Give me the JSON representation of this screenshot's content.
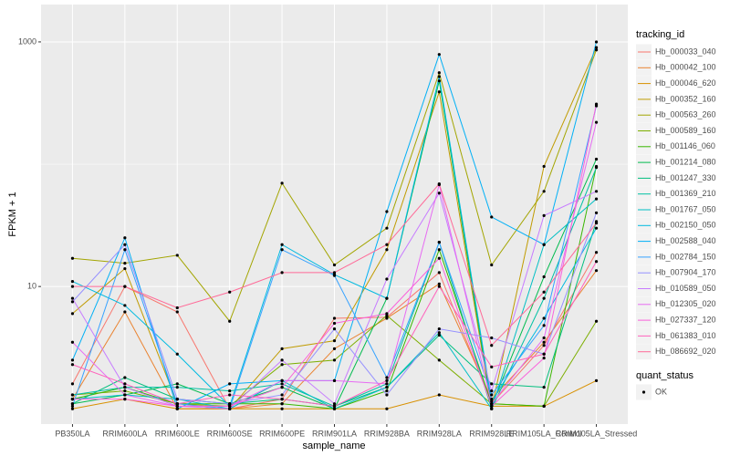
{
  "chart_data": {
    "type": "line",
    "x_label": "sample_name",
    "y_label": "FPKM + 1",
    "categories": [
      "PB350LA",
      "RRIM600LA",
      "RRIM600LE",
      "RRIM600SE",
      "RRIM600PE",
      "RRIM901LA",
      "RRIM928BA",
      "RRIM928LA",
      "RRIM928LE",
      "RRIM105LA_Control",
      "RRIM105LA_Stressed"
    ],
    "log_y": true,
    "ylim": [
      0.75,
      2020
    ],
    "yticks": [
      10,
      1000
    ],
    "grid": true,
    "legend_title": "tracking_id",
    "legend_position": "right",
    "series": [
      {
        "name": "Hb_000033_040",
        "color": "#F8766D",
        "values": [
          1.6,
          10,
          6.2,
          1.0,
          1.2,
          5.5,
          5.6,
          13,
          1.1,
          3.3,
          19
        ]
      },
      {
        "name": "Hb_000042_100",
        "color": "#EA8331",
        "values": [
          1.2,
          6.2,
          1.0,
          1.0,
          1.1,
          3.1,
          5.5,
          10.5,
          1.2,
          3.5,
          13.5
        ]
      },
      {
        "name": "Hb_000046_620",
        "color": "#D89000",
        "values": [
          1.0,
          1.2,
          1.0,
          1.0,
          1.0,
          1.0,
          1.0,
          1.3,
          1.05,
          1.05,
          1.7
        ]
      },
      {
        "name": "Hb_000352_160",
        "color": "#C09B00",
        "values": [
          6,
          14,
          1.1,
          1.0,
          3.1,
          3.6,
          20,
          390,
          1.0,
          96,
          900
        ]
      },
      {
        "name": "Hb_000563_260",
        "color": "#A3A500",
        "values": [
          17,
          15.5,
          18,
          5.2,
          70,
          15,
          30,
          560,
          15,
          60,
          860
        ]
      },
      {
        "name": "Hb_000589_160",
        "color": "#7CAE00",
        "values": [
          1.3,
          1.4,
          1.1,
          1.05,
          2.3,
          2.5,
          5.8,
          2.5,
          1.1,
          1.05,
          5.2
        ]
      },
      {
        "name": "Hb_001146_060",
        "color": "#39B600",
        "values": [
          1.2,
          1.5,
          1.1,
          1.1,
          1.1,
          1.0,
          1.4,
          20,
          1.1,
          1.05,
          96
        ]
      },
      {
        "name": "Hb_001214_080",
        "color": "#00BB4E",
        "values": [
          1.1,
          1.3,
          1.6,
          1.1,
          1.5,
          1.0,
          8,
          480,
          1.05,
          12,
          110
        ]
      },
      {
        "name": "Hb_001247_330",
        "color": "#00BF7D",
        "values": [
          1.1,
          1.8,
          1.2,
          1.1,
          1.2,
          1.05,
          1.5,
          4,
          1.6,
          1.5,
          34
        ]
      },
      {
        "name": "Hb_001369_210",
        "color": "#00C1A3",
        "values": [
          1.3,
          1.5,
          1.5,
          1.4,
          1.6,
          1.05,
          1.6,
          23,
          1.0,
          8,
          94
        ]
      },
      {
        "name": "Hb_001767_050",
        "color": "#00BFC4",
        "values": [
          1.2,
          1.3,
          1.2,
          1.0,
          1.7,
          1.0,
          1.5,
          4.2,
          1.0,
          22,
          52
        ]
      },
      {
        "name": "Hb_002150_050",
        "color": "#00BAE0",
        "values": [
          11,
          7,
          2.8,
          1.05,
          22,
          12.5,
          8,
          520,
          1.15,
          5.5,
          30
        ]
      },
      {
        "name": "Hb_002588_040",
        "color": "#00B0F6",
        "values": [
          2.5,
          25,
          1.0,
          1.6,
          1.7,
          1.7,
          41,
          790,
          37,
          22,
          1000
        ]
      },
      {
        "name": "Hb_002784_150",
        "color": "#35A2FF",
        "values": [
          1.05,
          20,
          1.1,
          1.0,
          20,
          12.3,
          1.8,
          23,
          1.3,
          4.8,
          300
        ]
      },
      {
        "name": "Hb_007904_170",
        "color": "#9590FF",
        "values": [
          7.5,
          22,
          1.2,
          1.1,
          1.3,
          4.5,
          1.3,
          4.5,
          3.8,
          2.8,
          40
        ]
      },
      {
        "name": "Hb_010589_050",
        "color": "#C77CFF",
        "values": [
          8,
          1.5,
          1.05,
          1.0,
          2.5,
          1.1,
          11.5,
          58,
          1.4,
          38,
          60
        ]
      },
      {
        "name": "Hb_012305_020",
        "color": "#E76BF3",
        "values": [
          3.5,
          1.3,
          1.05,
          1.05,
          1.7,
          1.7,
          1.6,
          68,
          1.1,
          3.8,
          220
        ]
      },
      {
        "name": "Hb_027337_120",
        "color": "#FA62DB",
        "values": [
          1.2,
          1.2,
          1.05,
          1.05,
          1.5,
          5,
          6,
          17,
          1.05,
          2.6,
          310
        ]
      },
      {
        "name": "Hb_061383_010",
        "color": "#FF62BC",
        "values": [
          2.3,
          1.6,
          1.1,
          1.3,
          1.2,
          1.05,
          1.7,
          10,
          2.2,
          2.8,
          16
        ]
      },
      {
        "name": "Hb_086692_020",
        "color": "#FF6A98",
        "values": [
          10,
          10,
          6.7,
          9,
          13,
          13,
          22,
          69,
          3.3,
          9,
          33
        ]
      }
    ],
    "point_color": "#000000",
    "shape_legend": {
      "title": "quant_status",
      "labels": [
        "OK"
      ]
    }
  }
}
